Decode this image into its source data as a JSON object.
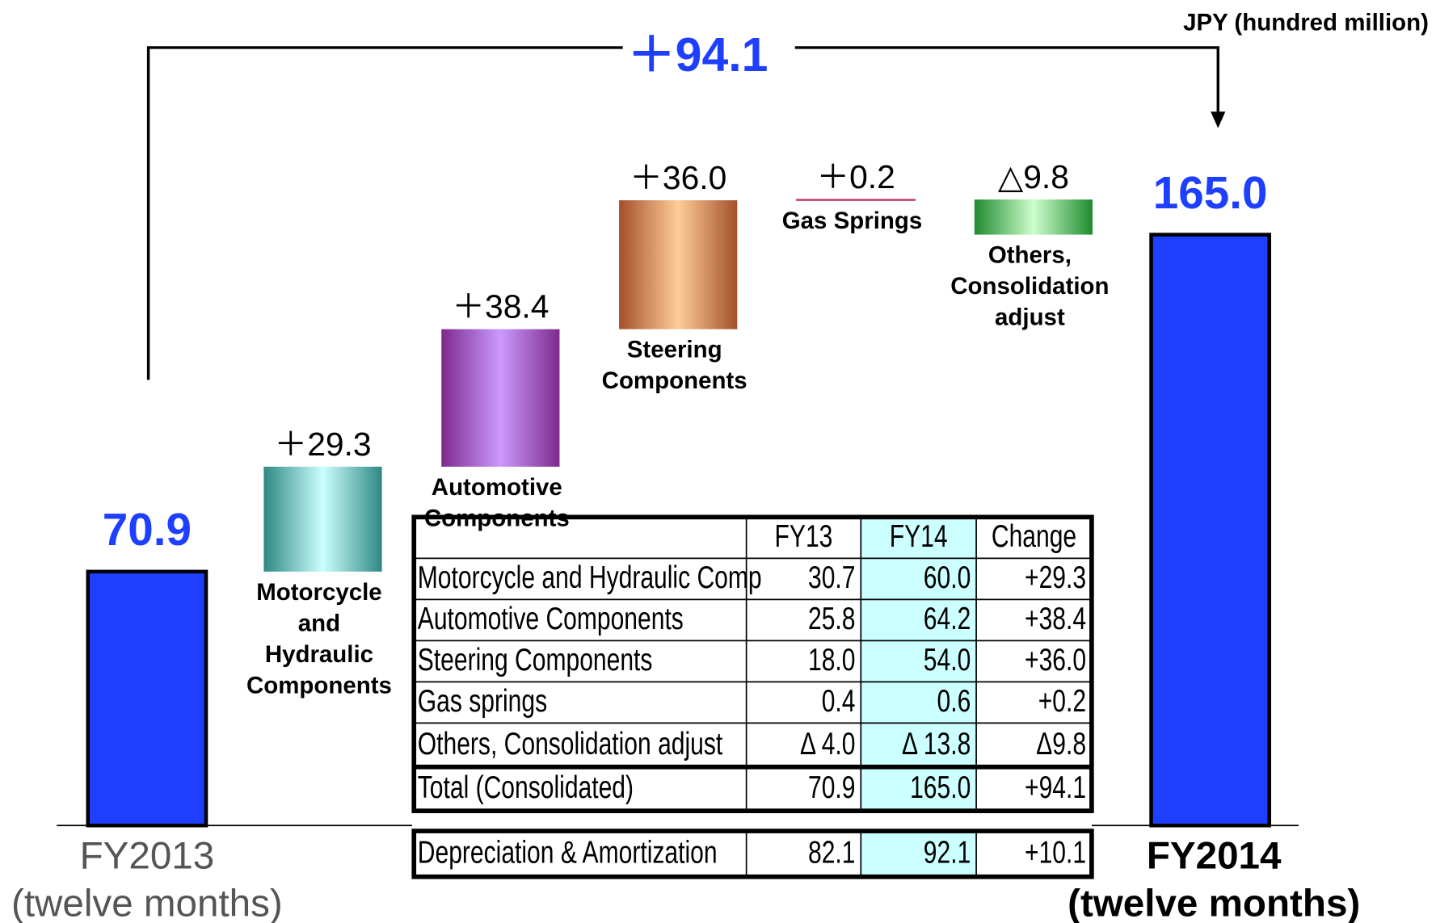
{
  "chart_data": {
    "type": "waterfall",
    "unit_label": "JPY (hundred million)",
    "total_change": 94.1,
    "total_change_label": "＋94.1",
    "categories": [
      [
        "FY2013",
        "(twelve months)"
      ],
      [
        "Motorcycle",
        "and",
        "Hydraulic",
        "Components"
      ],
      [
        "Automotive",
        "Components"
      ],
      [
        "Steering",
        "Components"
      ],
      [
        "Gas Springs"
      ],
      [
        "Others,",
        "Consolidation",
        "adjust"
      ],
      [
        "FY2014",
        "(twelve months)"
      ]
    ],
    "kinds": [
      "total",
      "delta",
      "delta",
      "delta",
      "delta",
      "delta",
      "total"
    ],
    "values": [
      70.9,
      29.3,
      38.4,
      36.0,
      0.2,
      -9.8,
      165.0
    ],
    "value_labels": [
      "70.9",
      "＋29.3",
      "＋38.4",
      "＋36.0",
      "＋0.2",
      "△9.8",
      "165.0"
    ],
    "colors": [
      "#1f3fff",
      "#2e8884",
      "#7d2a8c",
      "#a3502a",
      "#c0406a",
      "#1f8a2e",
      "#1f3fff"
    ],
    "highlight_colors": [
      "#1f3fff",
      "#ccffff",
      "#cc99ff",
      "#ffcc99",
      "#c0406a",
      "#ccffcc",
      "#1f3fff"
    ]
  },
  "table": {
    "header": [
      "FY13",
      "FY14",
      "Change"
    ],
    "rows": [
      [
        "Motorcycle and Hydraulic Comp",
        "30.7",
        "60.0",
        "+29.3"
      ],
      [
        "Automotive Components",
        "25.8",
        "64.2",
        "+38.4"
      ],
      [
        "Steering Components",
        "18.0",
        "54.0",
        "+36.0"
      ],
      [
        "Gas springs",
        "0.4",
        "0.6",
        "+0.2"
      ],
      [
        "Others, Consolidation adjust",
        "Δ 4.0",
        "Δ 13.8",
        "Δ9.8"
      ],
      [
        "Total (Consolidated)",
        "70.9",
        "165.0",
        "+94.1"
      ]
    ],
    "footer_row": [
      "Depreciation & Amortization",
      "82.1",
      "92.1",
      "+10.1"
    ]
  }
}
